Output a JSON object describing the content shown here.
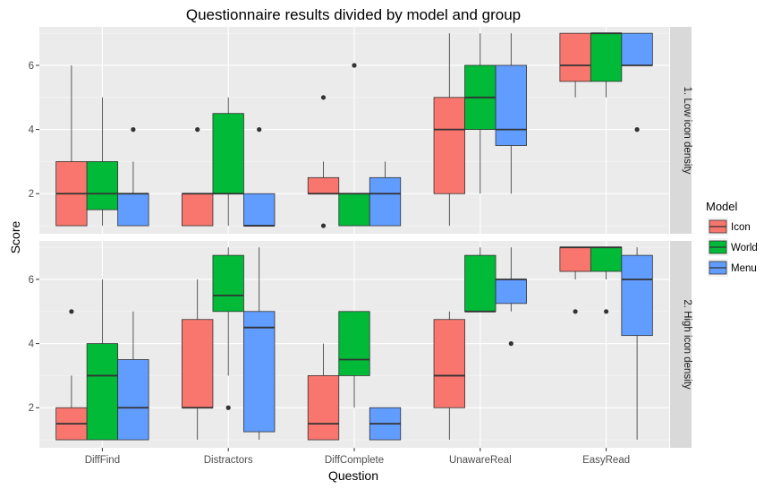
{
  "chart_data": {
    "type": "boxplot",
    "title": "Questionnaire results divided by model and group",
    "xlabel": "Question",
    "ylabel": "Score",
    "categories": [
      "DiffFind",
      "Distractors",
      "DiffComplete",
      "UnawareReal",
      "EasyRead"
    ],
    "ylim": [
      0.75,
      7.2
    ],
    "yticks": [
      2,
      4,
      6
    ],
    "grid": true,
    "legend": {
      "title": "Model",
      "position": "right",
      "entries": [
        {
          "name": "Icon",
          "color": "#F8766D"
        },
        {
          "name": "World",
          "color": "#00BA38"
        },
        {
          "name": "Menu",
          "color": "#619CFF"
        }
      ]
    },
    "panels": [
      {
        "label": "1. Low icon density",
        "groups": [
          {
            "category": "DiffFind",
            "series": [
              {
                "name": "Icon",
                "min": 1,
                "q1": 1,
                "median": 2,
                "q3": 3,
                "max": 6,
                "outliers": []
              },
              {
                "name": "World",
                "min": 1,
                "q1": 1.5,
                "median": 2,
                "q3": 3,
                "max": 5,
                "outliers": []
              },
              {
                "name": "Menu",
                "min": 1,
                "q1": 1,
                "median": 2,
                "q3": 2,
                "max": 3,
                "outliers": [
                  4
                ]
              }
            ]
          },
          {
            "category": "Distractors",
            "series": [
              {
                "name": "Icon",
                "min": 1,
                "q1": 1,
                "median": 2,
                "q3": 2,
                "max": 2,
                "outliers": [
                  4
                ]
              },
              {
                "name": "World",
                "min": 1,
                "q1": 2,
                "median": 2,
                "q3": 4.5,
                "max": 5,
                "outliers": []
              },
              {
                "name": "Menu",
                "min": 1,
                "q1": 1,
                "median": 1,
                "q3": 2,
                "max": 2,
                "outliers": [
                  4
                ]
              }
            ]
          },
          {
            "category": "DiffComplete",
            "series": [
              {
                "name": "Icon",
                "min": 2,
                "q1": 2,
                "median": 2,
                "q3": 2.5,
                "max": 3,
                "outliers": [
                  5,
                  1
                ]
              },
              {
                "name": "World",
                "min": 1,
                "q1": 1,
                "median": 2,
                "q3": 2,
                "max": 2,
                "outliers": [
                  6
                ]
              },
              {
                "name": "Menu",
                "min": 1,
                "q1": 1,
                "median": 2,
                "q3": 2.5,
                "max": 3,
                "outliers": []
              }
            ]
          },
          {
            "category": "UnawareReal",
            "series": [
              {
                "name": "Icon",
                "min": 1,
                "q1": 2,
                "median": 4,
                "q3": 5,
                "max": 7,
                "outliers": []
              },
              {
                "name": "World",
                "min": 2,
                "q1": 4,
                "median": 5,
                "q3": 6,
                "max": 7,
                "outliers": []
              },
              {
                "name": "Menu",
                "min": 2,
                "q1": 3.5,
                "median": 4,
                "q3": 6,
                "max": 7,
                "outliers": []
              }
            ]
          },
          {
            "category": "EasyRead",
            "series": [
              {
                "name": "Icon",
                "min": 5,
                "q1": 5.5,
                "median": 6,
                "q3": 7,
                "max": 7,
                "outliers": []
              },
              {
                "name": "World",
                "min": 5,
                "q1": 5.5,
                "median": 7,
                "q3": 7,
                "max": 7,
                "outliers": []
              },
              {
                "name": "Menu",
                "min": 6,
                "q1": 6,
                "median": 6,
                "q3": 7,
                "max": 7,
                "outliers": [
                  4
                ]
              }
            ]
          }
        ]
      },
      {
        "label": "2. High icon density",
        "groups": [
          {
            "category": "DiffFind",
            "series": [
              {
                "name": "Icon",
                "min": 1,
                "q1": 1,
                "median": 1.5,
                "q3": 2,
                "max": 3,
                "outliers": [
                  5
                ]
              },
              {
                "name": "World",
                "min": 1,
                "q1": 1,
                "median": 3,
                "q3": 4,
                "max": 6,
                "outliers": []
              },
              {
                "name": "Menu",
                "min": 1,
                "q1": 1,
                "median": 2,
                "q3": 3.5,
                "max": 5,
                "outliers": []
              }
            ]
          },
          {
            "category": "Distractors",
            "series": [
              {
                "name": "Icon",
                "min": 1,
                "q1": 2,
                "median": 2,
                "q3": 4.75,
                "max": 6,
                "outliers": []
              },
              {
                "name": "World",
                "min": 3,
                "q1": 5,
                "median": 5.5,
                "q3": 6.75,
                "max": 7,
                "outliers": [
                  2
                ]
              },
              {
                "name": "Menu",
                "min": 1,
                "q1": 1.25,
                "median": 4.5,
                "q3": 5,
                "max": 7,
                "outliers": []
              }
            ]
          },
          {
            "category": "DiffComplete",
            "series": [
              {
                "name": "Icon",
                "min": 1,
                "q1": 1,
                "median": 1.5,
                "q3": 3,
                "max": 4,
                "outliers": []
              },
              {
                "name": "World",
                "min": 2,
                "q1": 3,
                "median": 3.5,
                "q3": 5,
                "max": 5,
                "outliers": []
              },
              {
                "name": "Menu",
                "min": 1,
                "q1": 1,
                "median": 1.5,
                "q3": 2,
                "max": 2,
                "outliers": []
              }
            ]
          },
          {
            "category": "UnawareReal",
            "series": [
              {
                "name": "Icon",
                "min": 1,
                "q1": 2,
                "median": 3,
                "q3": 4.75,
                "max": 5,
                "outliers": []
              },
              {
                "name": "World",
                "min": 5,
                "q1": 5,
                "median": 5,
                "q3": 6.75,
                "max": 7,
                "outliers": []
              },
              {
                "name": "Menu",
                "min": 5,
                "q1": 5.25,
                "median": 6,
                "q3": 6,
                "max": 7,
                "outliers": [
                  4
                ]
              }
            ]
          },
          {
            "category": "EasyRead",
            "series": [
              {
                "name": "Icon",
                "min": 6,
                "q1": 6.25,
                "median": 7,
                "q3": 7,
                "max": 7,
                "outliers": [
                  5
                ]
              },
              {
                "name": "World",
                "min": 6,
                "q1": 6.25,
                "median": 7,
                "q3": 7,
                "max": 7,
                "outliers": [
                  5
                ]
              },
              {
                "name": "Menu",
                "min": 1,
                "q1": 4.25,
                "median": 6,
                "q3": 6.75,
                "max": 7,
                "outliers": []
              }
            ]
          }
        ]
      }
    ]
  }
}
